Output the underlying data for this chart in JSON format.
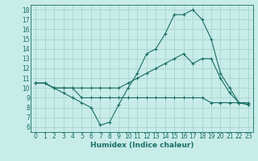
{
  "xlabel": "Humidex (Indice chaleur)",
  "bg_color": "#c8ece8",
  "grid_color": "#a8d4ce",
  "line_color": "#1a6e64",
  "spine_color": "#1a6e64",
  "xlim": [
    -0.5,
    23.5
  ],
  "ylim": [
    5.5,
    18.5
  ],
  "xticks": [
    0,
    1,
    2,
    3,
    4,
    5,
    6,
    7,
    8,
    9,
    10,
    11,
    12,
    13,
    14,
    15,
    16,
    17,
    18,
    19,
    20,
    21,
    22,
    23
  ],
  "yticks": [
    6,
    7,
    8,
    9,
    10,
    11,
    12,
    13,
    14,
    15,
    16,
    17,
    18
  ],
  "line1_x": [
    0,
    1,
    2,
    3,
    4,
    5,
    6,
    7,
    8,
    9,
    10,
    11,
    12,
    13,
    14,
    15,
    16,
    17,
    18,
    19,
    20,
    21,
    22,
    23
  ],
  "line1_y": [
    10.5,
    10.5,
    10.0,
    10.0,
    10.0,
    10.0,
    10.0,
    10.0,
    10.0,
    10.0,
    10.5,
    11.0,
    11.5,
    12.0,
    12.5,
    13.0,
    13.5,
    12.5,
    13.0,
    13.0,
    11.0,
    9.5,
    8.5,
    8.5
  ],
  "line2_x": [
    0,
    1,
    2,
    3,
    4,
    5,
    6,
    7,
    8,
    9,
    10,
    11,
    12,
    13,
    14,
    15,
    16,
    17,
    18,
    19,
    20,
    21,
    22,
    23
  ],
  "line2_y": [
    10.5,
    10.5,
    10.0,
    9.5,
    9.0,
    8.5,
    8.0,
    6.2,
    6.5,
    8.3,
    10.0,
    11.5,
    13.5,
    14.0,
    15.5,
    17.5,
    17.5,
    18.0,
    17.0,
    15.0,
    11.5,
    10.0,
    8.5,
    8.3
  ],
  "line3_x": [
    0,
    1,
    2,
    3,
    4,
    5,
    6,
    7,
    8,
    9,
    10,
    11,
    12,
    13,
    14,
    15,
    16,
    17,
    18,
    19,
    20,
    21,
    22,
    23
  ],
  "line3_y": [
    10.5,
    10.5,
    10.0,
    10.0,
    10.0,
    9.0,
    9.0,
    9.0,
    9.0,
    9.0,
    9.0,
    9.0,
    9.0,
    9.0,
    9.0,
    9.0,
    9.0,
    9.0,
    9.0,
    8.5,
    8.5,
    8.5,
    8.5,
    8.3
  ],
  "xlabel_fontsize": 6.5,
  "tick_fontsize": 5.5,
  "tick_color": "#1a6e64"
}
